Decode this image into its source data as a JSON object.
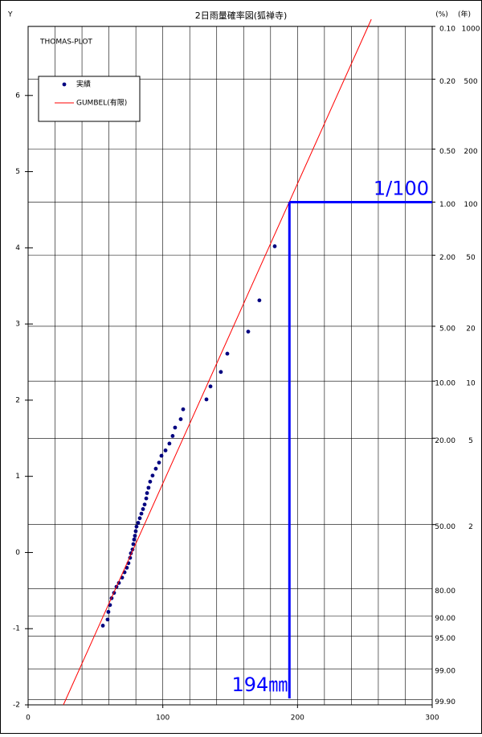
{
  "chart_data": {
    "type": "scatter",
    "title": "2日雨量確率図(狐禅寺)",
    "y_axis_label": "Y",
    "prob_header": "(%)",
    "return_header": "(年)",
    "plot_label": "THOMAS-PLOT",
    "xlim": [
      0,
      300
    ],
    "xticks": [
      0,
      100,
      200,
      300
    ],
    "x_minor_step": 20,
    "ylim": [
      -2,
      7
    ],
    "yticks": [
      -2,
      -1,
      0,
      1,
      2,
      3,
      4,
      5,
      6
    ],
    "prob_ticks": [
      {
        "value": 6.907,
        "label": "0.10"
      },
      {
        "value": 6.213,
        "label": "0.20"
      },
      {
        "value": 5.296,
        "label": "0.50"
      },
      {
        "value": 4.6,
        "label": "1.00"
      },
      {
        "value": 3.902,
        "label": "2.00"
      },
      {
        "value": 2.97,
        "label": "5.00"
      },
      {
        "value": 2.25,
        "label": "10.00"
      },
      {
        "value": 1.5,
        "label": "20.00"
      },
      {
        "value": 0.367,
        "label": "50.00"
      },
      {
        "value": -0.476,
        "label": "80.00"
      },
      {
        "value": -0.834,
        "label": "90.00"
      },
      {
        "value": -1.097,
        "label": "95.00"
      },
      {
        "value": -1.527,
        "label": "99.00"
      },
      {
        "value": -1.933,
        "label": "99.90"
      }
    ],
    "return_ticks": [
      {
        "value": 6.907,
        "label": "1000"
      },
      {
        "value": 6.213,
        "label": "500"
      },
      {
        "value": 5.296,
        "label": "200"
      },
      {
        "value": 4.6,
        "label": "100"
      },
      {
        "value": 3.902,
        "label": "50"
      },
      {
        "value": 2.97,
        "label": "20"
      },
      {
        "value": 2.25,
        "label": "10"
      },
      {
        "value": 1.5,
        "label": "5"
      },
      {
        "value": 0.367,
        "label": "2"
      }
    ],
    "grid": true,
    "legend": "upper left",
    "series": [
      {
        "name": "実績",
        "type": "scatter",
        "color": "#000080",
        "x": [
          55.5,
          59.0,
          59.6,
          60.8,
          62.0,
          63.8,
          65.6,
          67.4,
          69.8,
          71.6,
          73.3,
          74.5,
          75.7,
          76.3,
          77.5,
          78.1,
          78.7,
          79.3,
          79.9,
          80.5,
          81.7,
          82.9,
          84.1,
          85.3,
          86.5,
          87.7,
          88.3,
          89.4,
          90.6,
          92.4,
          94.8,
          97.2,
          99.0,
          102.0,
          104.9,
          107.3,
          109.1,
          113.3,
          115.1,
          132.4,
          135.4,
          143.1,
          147.9,
          163.4,
          171.7,
          183.1
        ],
        "values": [
          -0.96,
          -0.88,
          -0.78,
          -0.69,
          -0.6,
          -0.53,
          -0.45,
          -0.4,
          -0.33,
          -0.26,
          -0.2,
          -0.14,
          -0.07,
          -0.01,
          0.04,
          0.11,
          0.17,
          0.22,
          0.28,
          0.34,
          0.39,
          0.45,
          0.51,
          0.57,
          0.63,
          0.71,
          0.78,
          0.85,
          0.93,
          1.01,
          1.1,
          1.18,
          1.27,
          1.34,
          1.43,
          1.53,
          1.64,
          1.75,
          1.88,
          2.01,
          2.18,
          2.37,
          2.61,
          2.9,
          3.31,
          4.02
        ]
      },
      {
        "name": "GUMBEL(有限)",
        "type": "line",
        "color": "#ff0000",
        "x": [
          26.2,
          254.8
        ],
        "values": [
          -2,
          7
        ]
      }
    ],
    "annotation": {
      "x": 194,
      "y": 4.6,
      "x_text": "194㎜",
      "y_text": "1/100",
      "color": "#0000ff"
    }
  }
}
